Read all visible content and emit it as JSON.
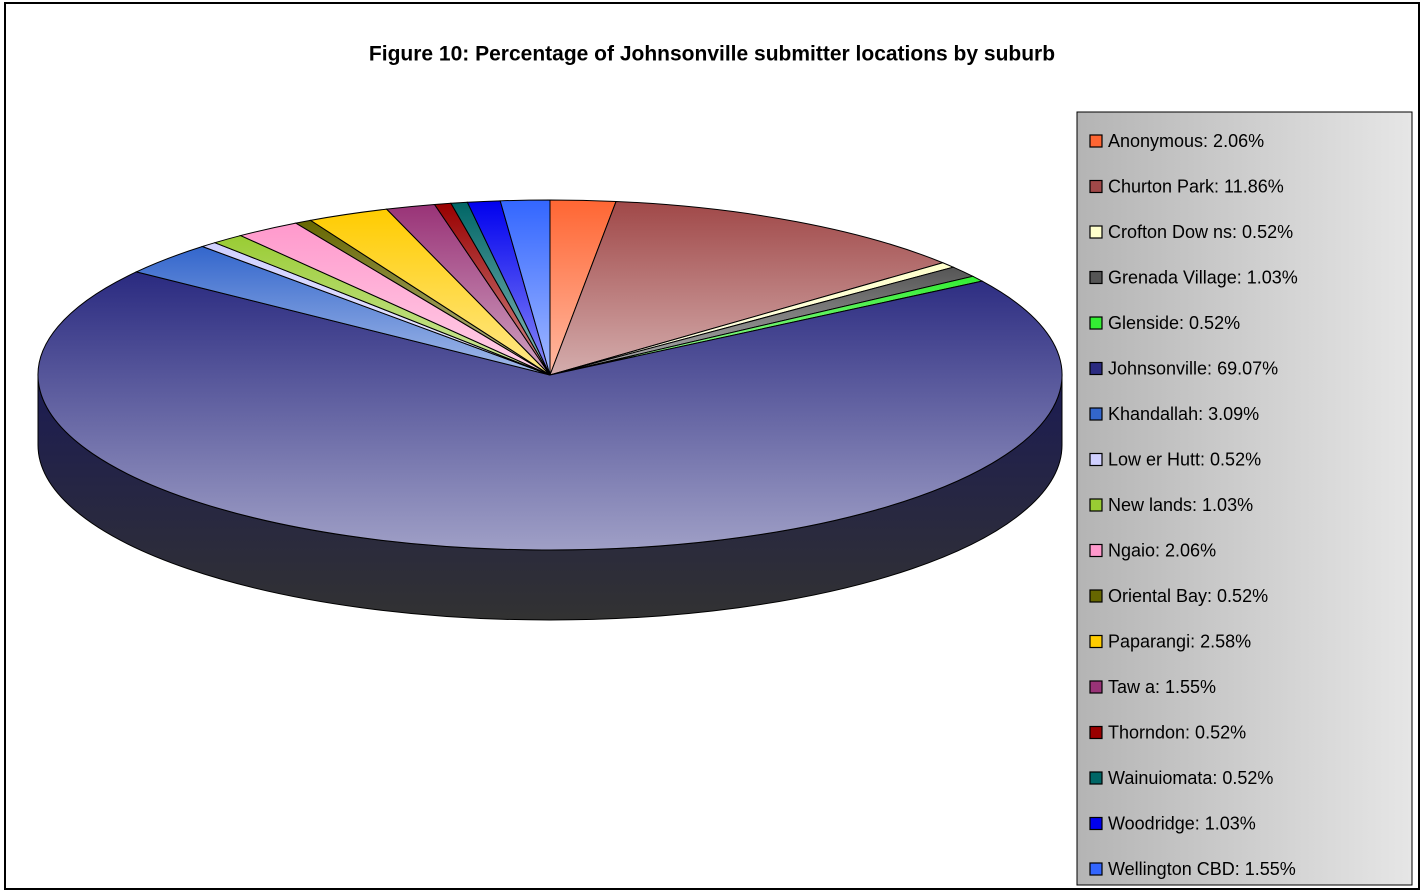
{
  "chart_data": {
    "type": "pie3d",
    "title": "Figure 10: Percentage of Johnsonville submitter locations by suburb",
    "categories": [
      "Anonymous: 2.06%",
      "Churton Park: 11.86%",
      "Crofton Dow ns: 0.52%",
      "Grenada Village: 1.03%",
      "Glenside: 0.52%",
      "Johnsonville: 69.07%",
      "Khandallah: 3.09%",
      "Low er Hutt: 0.52%",
      "New lands: 1.03%",
      "Ngaio: 2.06%",
      "Oriental Bay: 0.52%",
      "Paparangi: 2.58%",
      "Taw a: 1.55%",
      "Thorndon: 0.52%",
      "Wainuiomata: 0.52%",
      "Woodridge: 1.03%",
      "Wellington CBD: 1.55%"
    ],
    "values": [
      2.06,
      11.86,
      0.52,
      1.03,
      0.52,
      69.07,
      3.09,
      0.52,
      1.03,
      2.06,
      0.52,
      2.58,
      1.55,
      0.52,
      0.52,
      1.03,
      1.55
    ],
    "colors": [
      "#ff6633",
      "#a04848",
      "#ffffcc",
      "#555555",
      "#33ee33",
      "#2a2a80",
      "#3366cc",
      "#d0d0ff",
      "#99cc33",
      "#ff99cc",
      "#666600",
      "#ffcc00",
      "#993377",
      "#990000",
      "#006666",
      "#0000ee",
      "#3366ff"
    ],
    "legend": "right"
  }
}
